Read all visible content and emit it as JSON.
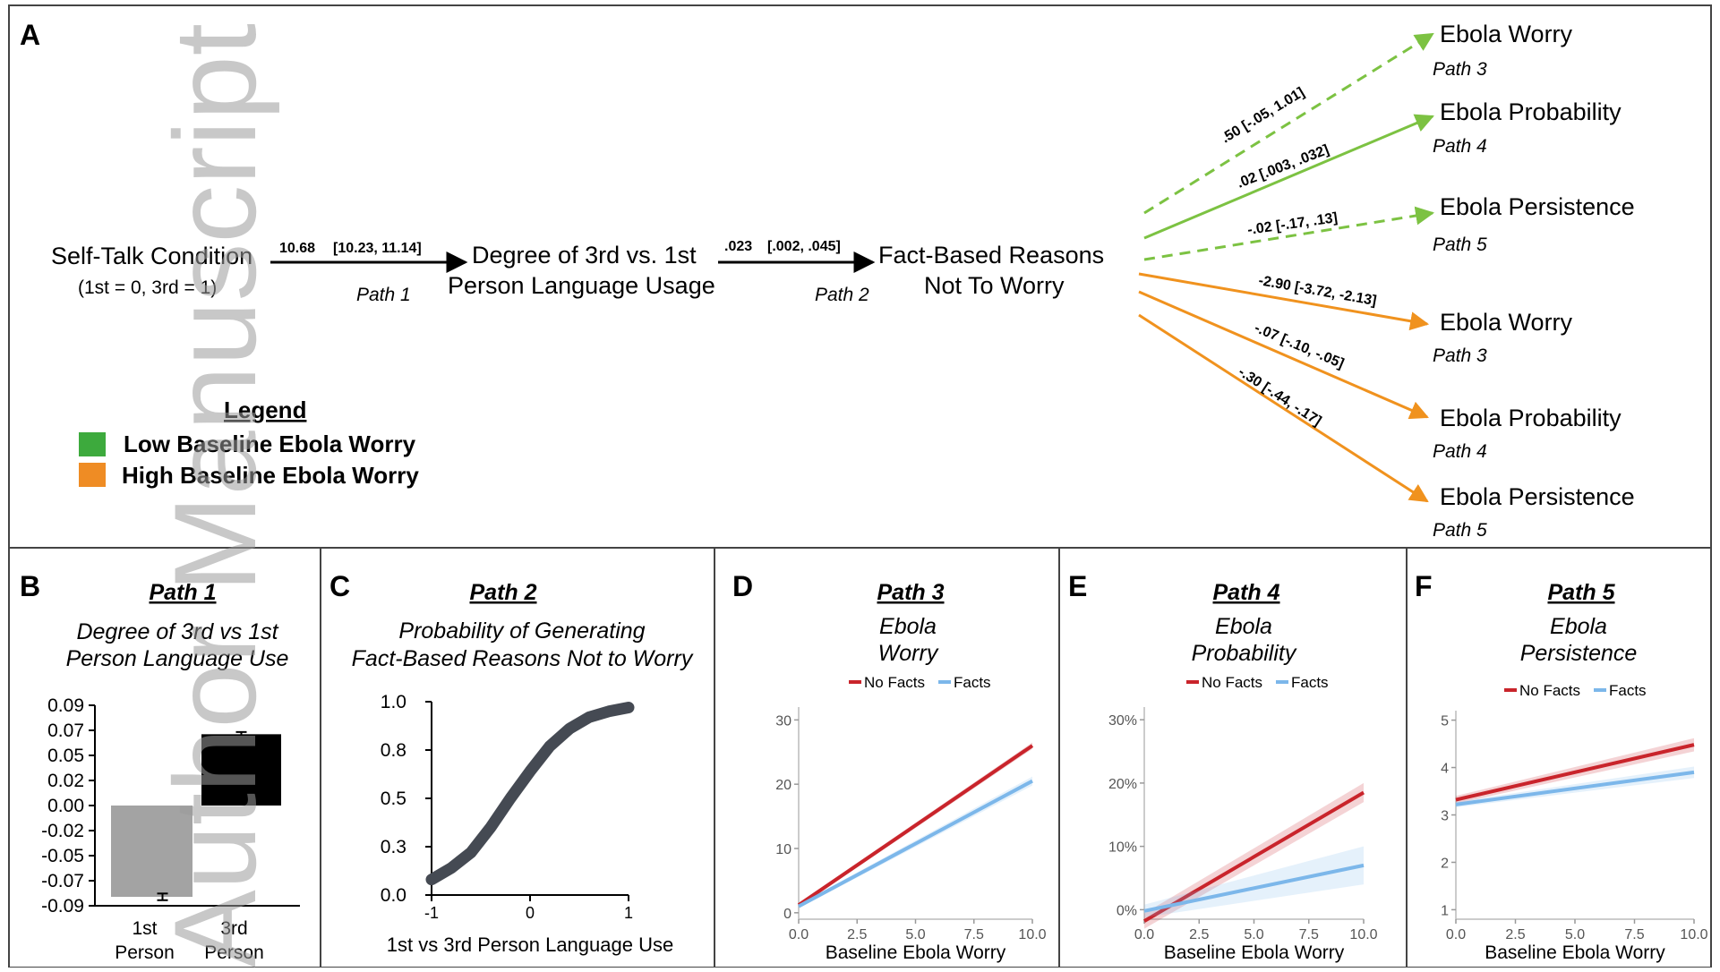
{
  "watermark": "Author Manuscript",
  "panelA": {
    "letter": "A",
    "source_node": {
      "line1": "Self-Talk Condition",
      "line2": "(1st = 0, 3rd = 1)"
    },
    "mid_node": {
      "line1": "Degree of 3rd vs. 1st",
      "line2": "Person Language Usage"
    },
    "fact_node": {
      "line1": "Fact-Based Reasons",
      "line2": "Not To Worry"
    },
    "path1": {
      "coef": "10.68",
      "ci": "[10.23, 11.14]",
      "label": "Path 1"
    },
    "path2": {
      "coef": ".023",
      "ci": "[.002, .045]",
      "label": "Path 2"
    },
    "green_paths": [
      {
        "coef": ".50 [-.05, 1.01]",
        "target": "Ebola Worry",
        "path": "Path 3",
        "style": "dashed"
      },
      {
        "coef": ".02 [.003, .032]",
        "target": "Ebola Probability",
        "path": "Path 4",
        "style": "solid"
      },
      {
        "coef": "-.02 [-.17, .13]",
        "target": "Ebola Persistence",
        "path": "Path 5",
        "style": "dashed"
      }
    ],
    "orange_paths": [
      {
        "coef": "-2.90 [-3.72, -2.13]",
        "target": "Ebola Worry",
        "path": "Path 3"
      },
      {
        "coef": "-.07 [-.10, -.05]",
        "target": "Ebola Probability",
        "path": "Path 4"
      },
      {
        "coef": "-.30 [-.44, -.17]",
        "target": "Ebola Persistence",
        "path": "Path 5"
      }
    ],
    "legend": {
      "title": "Legend",
      "items": [
        {
          "label": "Low Baseline Ebola Worry",
          "color": "#3daa3d"
        },
        {
          "label": "High Baseline Ebola Worry",
          "color": "#ef8c24"
        }
      ]
    },
    "colors": {
      "green": "#7cc242",
      "orange": "#f0921e"
    }
  },
  "panelB": {
    "letter": "B",
    "path": "Path 1",
    "subtitle1": "Degree of 3rd vs 1st",
    "subtitle2": "Person Language Use",
    "chart_data": {
      "type": "bar",
      "categories": [
        [
          "1st",
          "Person"
        ],
        [
          "3rd",
          "Person"
        ]
      ],
      "values": [
        -0.082,
        0.064
      ],
      "errors": [
        0.003,
        0.002
      ],
      "colors": [
        "#a3a3a3",
        "#000000"
      ],
      "yticks": [
        "0.09",
        "0.07",
        "0.05",
        "0.02",
        "0.00",
        "-0.02",
        "-0.05",
        "-0.07",
        "-0.09"
      ],
      "ylim": [
        -0.09,
        0.09
      ]
    }
  },
  "panelC": {
    "letter": "C",
    "path": "Path 2",
    "subtitle1": "Probability of Generating",
    "subtitle2": "Fact-Based Reasons Not to Worry",
    "chart_data": {
      "type": "line",
      "x": [
        -1,
        -0.8,
        -0.6,
        -0.4,
        -0.2,
        0,
        0.2,
        0.4,
        0.6,
        0.8,
        1
      ],
      "y": [
        0.08,
        0.14,
        0.22,
        0.35,
        0.5,
        0.64,
        0.77,
        0.86,
        0.92,
        0.95,
        0.97
      ],
      "xticks": [
        "-1",
        "0",
        "1"
      ],
      "yticks": [
        "0.0",
        "0.3",
        "0.5",
        "0.8",
        "1.0"
      ],
      "xlim": [
        -1,
        1
      ],
      "ylim": [
        0,
        1
      ],
      "xlabel": "1st vs 3rd Person Language Use",
      "color": "#454a53"
    }
  },
  "panelD": {
    "letter": "D",
    "path": "Path 3",
    "subtitle1": "Ebola",
    "subtitle2": "Worry",
    "legend": [
      "No Facts",
      "Facts"
    ],
    "chart_data": {
      "type": "line",
      "xlim": [
        0,
        10
      ],
      "ylim": [
        -1,
        32
      ],
      "xticks": [
        "0.0",
        "2.5",
        "5.0",
        "7.5",
        "10.0"
      ],
      "yticks": [
        "0",
        "10",
        "20",
        "30"
      ],
      "ytick_values": [
        0,
        10,
        20,
        30
      ],
      "xlabel": "Baseline Ebola Worry",
      "series": [
        {
          "name": "No Facts",
          "x": [
            0,
            10
          ],
          "y": [
            1.2,
            26
          ],
          "band": [
            0.3,
            0.5
          ],
          "color": "#c9242b"
        },
        {
          "name": "Facts",
          "x": [
            0,
            10
          ],
          "y": [
            1.0,
            20.5
          ],
          "band": [
            0.3,
            0.7
          ],
          "color": "#7cb7ea"
        }
      ]
    }
  },
  "panelE": {
    "letter": "E",
    "path": "Path 4",
    "subtitle1": "Ebola",
    "subtitle2": "Probability",
    "legend": [
      "No Facts",
      "Facts"
    ],
    "chart_data": {
      "type": "line",
      "xlim": [
        0,
        10
      ],
      "ylim": [
        -1.5,
        32
      ],
      "xticks": [
        "0.0",
        "2.5",
        "5.0",
        "7.5",
        "10.0"
      ],
      "yticks": [
        "0%",
        "10%",
        "20%",
        "30%"
      ],
      "ytick_values": [
        0,
        10,
        20,
        30
      ],
      "xlabel": "Baseline Ebola Worry",
      "series": [
        {
          "name": "No Facts",
          "x": [
            0,
            10
          ],
          "y": [
            -1.8,
            18.5
          ],
          "band": [
            1.2,
            1.5
          ],
          "color": "#c9242b"
        },
        {
          "name": "Facts",
          "x": [
            0,
            10
          ],
          "y": [
            -0.2,
            7.0
          ],
          "band": [
            1.0,
            3.0
          ],
          "color": "#7cb7ea"
        }
      ]
    }
  },
  "panelF": {
    "letter": "F",
    "path": "Path 5",
    "subtitle1": "Ebola",
    "subtitle2": "Persistence",
    "legend": [
      "No Facts",
      "Facts"
    ],
    "chart_data": {
      "type": "line",
      "xlim": [
        0,
        10
      ],
      "ylim": [
        0.8,
        5.2
      ],
      "xticks": [
        "0.0",
        "2.5",
        "5.0",
        "7.5",
        "10.0"
      ],
      "yticks": [
        "1",
        "2",
        "3",
        "4",
        "5"
      ],
      "ytick_values": [
        1,
        2,
        3,
        4,
        5
      ],
      "xlabel": "Baseline Ebola Worry",
      "series": [
        {
          "name": "No Facts",
          "x": [
            0,
            10
          ],
          "y": [
            3.32,
            4.48
          ],
          "band": [
            0.08,
            0.14
          ],
          "color": "#c9242b"
        },
        {
          "name": "Facts",
          "x": [
            0,
            10
          ],
          "y": [
            3.22,
            3.9
          ],
          "band": [
            0.06,
            0.12
          ],
          "color": "#7cb7ea"
        }
      ]
    }
  }
}
